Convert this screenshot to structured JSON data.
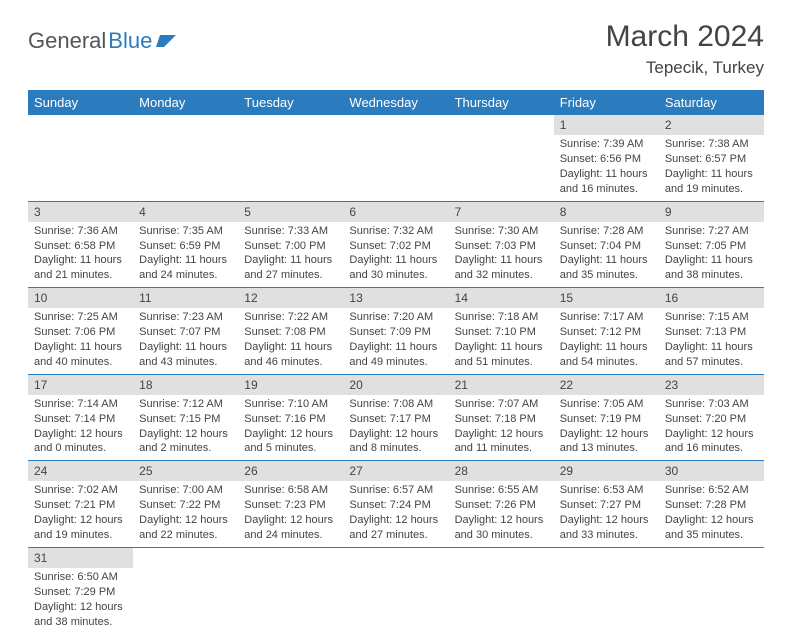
{
  "logo": {
    "text_a": "General",
    "text_b": "Blue"
  },
  "title": "March 2024",
  "subtitle": "Tepecik, Turkey",
  "colors": {
    "header_bg": "#2b7bbf",
    "header_text": "#ffffff",
    "daynum_bg": "#e0e0e0",
    "border": "#2b7bbf",
    "text": "#444444"
  },
  "weekdays": [
    "Sunday",
    "Monday",
    "Tuesday",
    "Wednesday",
    "Thursday",
    "Friday",
    "Saturday"
  ],
  "weeks": [
    [
      null,
      null,
      null,
      null,
      null,
      {
        "n": "1",
        "sr": "Sunrise: 7:39 AM",
        "ss": "Sunset: 6:56 PM",
        "dl1": "Daylight: 11 hours",
        "dl2": "and 16 minutes."
      },
      {
        "n": "2",
        "sr": "Sunrise: 7:38 AM",
        "ss": "Sunset: 6:57 PM",
        "dl1": "Daylight: 11 hours",
        "dl2": "and 19 minutes."
      }
    ],
    [
      {
        "n": "3",
        "sr": "Sunrise: 7:36 AM",
        "ss": "Sunset: 6:58 PM",
        "dl1": "Daylight: 11 hours",
        "dl2": "and 21 minutes."
      },
      {
        "n": "4",
        "sr": "Sunrise: 7:35 AM",
        "ss": "Sunset: 6:59 PM",
        "dl1": "Daylight: 11 hours",
        "dl2": "and 24 minutes."
      },
      {
        "n": "5",
        "sr": "Sunrise: 7:33 AM",
        "ss": "Sunset: 7:00 PM",
        "dl1": "Daylight: 11 hours",
        "dl2": "and 27 minutes."
      },
      {
        "n": "6",
        "sr": "Sunrise: 7:32 AM",
        "ss": "Sunset: 7:02 PM",
        "dl1": "Daylight: 11 hours",
        "dl2": "and 30 minutes."
      },
      {
        "n": "7",
        "sr": "Sunrise: 7:30 AM",
        "ss": "Sunset: 7:03 PM",
        "dl1": "Daylight: 11 hours",
        "dl2": "and 32 minutes."
      },
      {
        "n": "8",
        "sr": "Sunrise: 7:28 AM",
        "ss": "Sunset: 7:04 PM",
        "dl1": "Daylight: 11 hours",
        "dl2": "and 35 minutes."
      },
      {
        "n": "9",
        "sr": "Sunrise: 7:27 AM",
        "ss": "Sunset: 7:05 PM",
        "dl1": "Daylight: 11 hours",
        "dl2": "and 38 minutes."
      }
    ],
    [
      {
        "n": "10",
        "sr": "Sunrise: 7:25 AM",
        "ss": "Sunset: 7:06 PM",
        "dl1": "Daylight: 11 hours",
        "dl2": "and 40 minutes."
      },
      {
        "n": "11",
        "sr": "Sunrise: 7:23 AM",
        "ss": "Sunset: 7:07 PM",
        "dl1": "Daylight: 11 hours",
        "dl2": "and 43 minutes."
      },
      {
        "n": "12",
        "sr": "Sunrise: 7:22 AM",
        "ss": "Sunset: 7:08 PM",
        "dl1": "Daylight: 11 hours",
        "dl2": "and 46 minutes."
      },
      {
        "n": "13",
        "sr": "Sunrise: 7:20 AM",
        "ss": "Sunset: 7:09 PM",
        "dl1": "Daylight: 11 hours",
        "dl2": "and 49 minutes."
      },
      {
        "n": "14",
        "sr": "Sunrise: 7:18 AM",
        "ss": "Sunset: 7:10 PM",
        "dl1": "Daylight: 11 hours",
        "dl2": "and 51 minutes."
      },
      {
        "n": "15",
        "sr": "Sunrise: 7:17 AM",
        "ss": "Sunset: 7:12 PM",
        "dl1": "Daylight: 11 hours",
        "dl2": "and 54 minutes."
      },
      {
        "n": "16",
        "sr": "Sunrise: 7:15 AM",
        "ss": "Sunset: 7:13 PM",
        "dl1": "Daylight: 11 hours",
        "dl2": "and 57 minutes."
      }
    ],
    [
      {
        "n": "17",
        "sr": "Sunrise: 7:14 AM",
        "ss": "Sunset: 7:14 PM",
        "dl1": "Daylight: 12 hours",
        "dl2": "and 0 minutes."
      },
      {
        "n": "18",
        "sr": "Sunrise: 7:12 AM",
        "ss": "Sunset: 7:15 PM",
        "dl1": "Daylight: 12 hours",
        "dl2": "and 2 minutes."
      },
      {
        "n": "19",
        "sr": "Sunrise: 7:10 AM",
        "ss": "Sunset: 7:16 PM",
        "dl1": "Daylight: 12 hours",
        "dl2": "and 5 minutes."
      },
      {
        "n": "20",
        "sr": "Sunrise: 7:08 AM",
        "ss": "Sunset: 7:17 PM",
        "dl1": "Daylight: 12 hours",
        "dl2": "and 8 minutes."
      },
      {
        "n": "21",
        "sr": "Sunrise: 7:07 AM",
        "ss": "Sunset: 7:18 PM",
        "dl1": "Daylight: 12 hours",
        "dl2": "and 11 minutes."
      },
      {
        "n": "22",
        "sr": "Sunrise: 7:05 AM",
        "ss": "Sunset: 7:19 PM",
        "dl1": "Daylight: 12 hours",
        "dl2": "and 13 minutes."
      },
      {
        "n": "23",
        "sr": "Sunrise: 7:03 AM",
        "ss": "Sunset: 7:20 PM",
        "dl1": "Daylight: 12 hours",
        "dl2": "and 16 minutes."
      }
    ],
    [
      {
        "n": "24",
        "sr": "Sunrise: 7:02 AM",
        "ss": "Sunset: 7:21 PM",
        "dl1": "Daylight: 12 hours",
        "dl2": "and 19 minutes."
      },
      {
        "n": "25",
        "sr": "Sunrise: 7:00 AM",
        "ss": "Sunset: 7:22 PM",
        "dl1": "Daylight: 12 hours",
        "dl2": "and 22 minutes."
      },
      {
        "n": "26",
        "sr": "Sunrise: 6:58 AM",
        "ss": "Sunset: 7:23 PM",
        "dl1": "Daylight: 12 hours",
        "dl2": "and 24 minutes."
      },
      {
        "n": "27",
        "sr": "Sunrise: 6:57 AM",
        "ss": "Sunset: 7:24 PM",
        "dl1": "Daylight: 12 hours",
        "dl2": "and 27 minutes."
      },
      {
        "n": "28",
        "sr": "Sunrise: 6:55 AM",
        "ss": "Sunset: 7:26 PM",
        "dl1": "Daylight: 12 hours",
        "dl2": "and 30 minutes."
      },
      {
        "n": "29",
        "sr": "Sunrise: 6:53 AM",
        "ss": "Sunset: 7:27 PM",
        "dl1": "Daylight: 12 hours",
        "dl2": "and 33 minutes."
      },
      {
        "n": "30",
        "sr": "Sunrise: 6:52 AM",
        "ss": "Sunset: 7:28 PM",
        "dl1": "Daylight: 12 hours",
        "dl2": "and 35 minutes."
      }
    ],
    [
      {
        "n": "31",
        "sr": "Sunrise: 6:50 AM",
        "ss": "Sunset: 7:29 PM",
        "dl1": "Daylight: 12 hours",
        "dl2": "and 38 minutes."
      },
      null,
      null,
      null,
      null,
      null,
      null
    ]
  ]
}
